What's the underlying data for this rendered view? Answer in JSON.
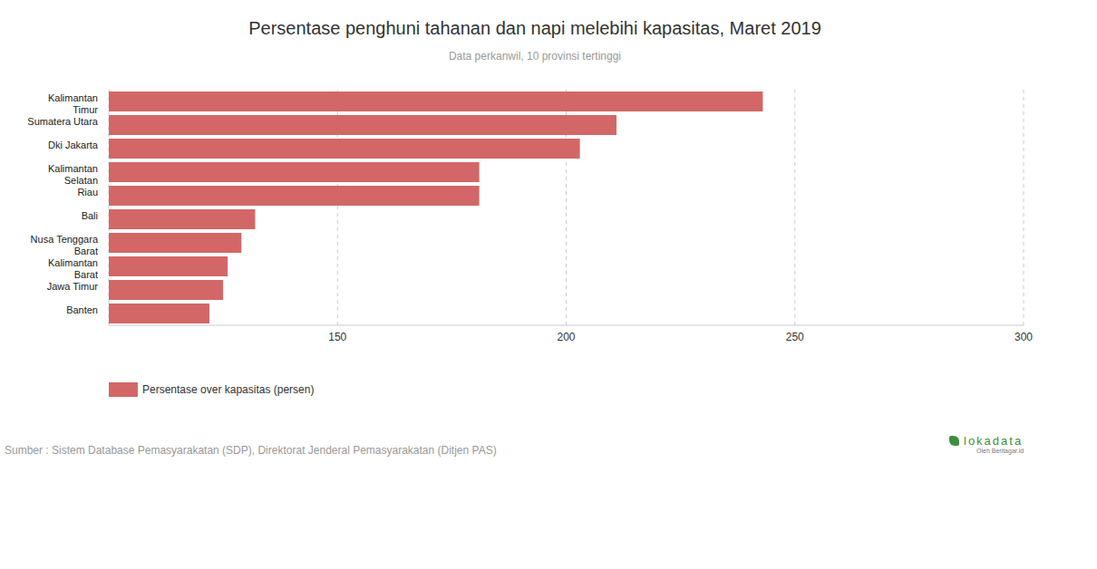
{
  "chart_data": {
    "type": "bar",
    "orientation": "horizontal",
    "title": "Persentase penghuni tahanan dan napi melebihi kapasitas, Maret 2019",
    "subtitle": "Data perkanwil, 10 provinsi tertinggi",
    "categories": [
      "Kalimantan Timur",
      "Sumatera Utara",
      "Dki Jakarta",
      "Kalimantan Selatan",
      "Riau",
      "Bali",
      "Nusa Tenggara Barat",
      "Kalimantan Barat",
      "Jawa Timur",
      "Banten"
    ],
    "series": [
      {
        "name": "Persentase over kapasitas (persen)",
        "color": "#d36767",
        "values": [
          243,
          211,
          203,
          181,
          181,
          132,
          129,
          126,
          125,
          122
        ]
      }
    ],
    "xlim": [
      100,
      300
    ],
    "xticks": [
      150,
      200,
      250,
      300
    ],
    "grid": true,
    "source": "Sumber : Sistem Database Pemasyarakatan (SDP), Direktorat Jenderal Pemasyarakatan (Ditjen PAS)",
    "annotations": [
      "lokadata",
      "Oleh Beritagar.id"
    ]
  }
}
